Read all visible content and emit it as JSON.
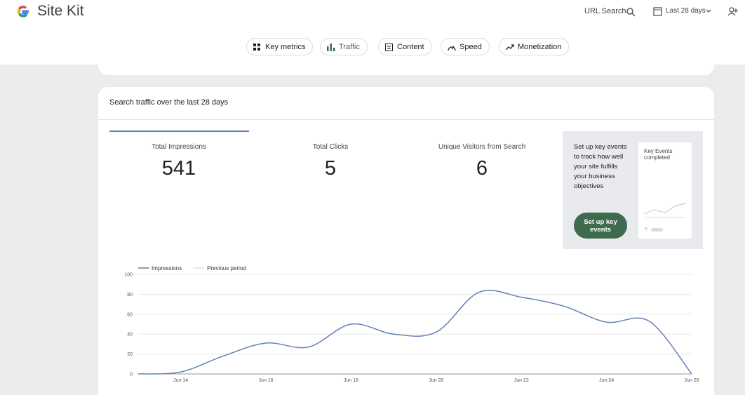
{
  "header": {
    "brand": "Site Kit",
    "url_search": "URL Search",
    "date_range": "Last 28 days"
  },
  "nav": [
    "Key metrics",
    "Traffic",
    "Content",
    "Speed",
    "Monetization"
  ],
  "card": {
    "title": "Search traffic over the last 28 days",
    "metrics": [
      {
        "label": "Total Impressions",
        "value": 541
      },
      {
        "label": "Total Clicks",
        "value": 5
      },
      {
        "label": "Unique Visitors from Search",
        "value": 6
      }
    ],
    "promo": {
      "text": "Set up key events to track how well your site fulfills your business objectives",
      "button": "Set up key events",
      "preview_title": "Key Events completed"
    }
  },
  "chart_data": {
    "type": "line",
    "categories": [
      null,
      "Jun 14",
      null,
      "Jun 16",
      null,
      "Jun 18",
      null,
      "Jun 20",
      null,
      "Jun 22",
      null,
      "Jun 24",
      null,
      "Jun 26"
    ],
    "series": [
      {
        "name": "Impressions",
        "color": "#6380b8",
        "values": [
          0,
          2,
          18,
          31,
          27,
          50,
          40,
          42,
          82,
          77,
          68,
          52,
          53,
          0
        ]
      },
      {
        "name": "Previous period",
        "color": "#c5cbd6",
        "values": [
          null,
          null,
          null,
          null,
          null,
          null,
          null,
          null,
          null,
          null,
          null,
          null,
          null,
          null
        ]
      }
    ],
    "ylim": [
      0,
      100
    ],
    "yticks": [
      0,
      20,
      40,
      60,
      80,
      100
    ],
    "grid": true
  }
}
